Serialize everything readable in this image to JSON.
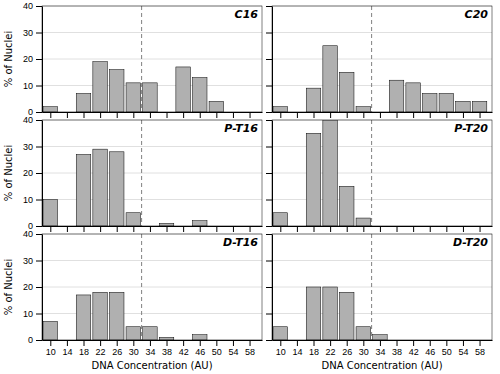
{
  "chart_data": [
    {
      "type": "bar",
      "title": "C16",
      "x": [
        10,
        14,
        18,
        22,
        26,
        30,
        34,
        38,
        42,
        46,
        50,
        54,
        58
      ],
      "values": [
        2,
        0,
        7,
        19,
        16,
        11,
        11,
        0,
        17,
        13,
        4,
        0,
        0
      ],
      "color": "#b0b0b0",
      "xlim": [
        8,
        61
      ],
      "ylim": [
        0,
        40
      ],
      "xticks": [
        10,
        14,
        18,
        22,
        26,
        30,
        34,
        38,
        42,
        46,
        50,
        54,
        58
      ],
      "yticks": [
        0,
        10,
        20,
        30,
        40
      ],
      "grid": true,
      "vline": 32,
      "tick_labels": "y",
      "ylabel": "% of Nuclei"
    },
    {
      "type": "bar",
      "title": "C20",
      "x": [
        10,
        14,
        18,
        22,
        26,
        30,
        34,
        38,
        42,
        46,
        50,
        54,
        58
      ],
      "values": [
        2,
        0,
        9,
        25,
        15,
        2,
        0,
        12,
        11,
        7,
        7,
        4,
        4
      ],
      "color": "#b0b0b0",
      "xlim": [
        8,
        61
      ],
      "ylim": [
        0,
        40
      ],
      "xticks": [
        10,
        14,
        18,
        22,
        26,
        30,
        34,
        38,
        42,
        46,
        50,
        54,
        58
      ],
      "yticks": [
        0,
        10,
        20,
        30,
        40
      ],
      "grid": true,
      "vline": 32,
      "tick_labels": false
    },
    {
      "type": "bar",
      "title": "P-T16",
      "x": [
        10,
        14,
        18,
        22,
        26,
        30,
        34,
        38,
        42,
        46,
        50,
        54,
        58
      ],
      "values": [
        10,
        0,
        27,
        29,
        28,
        5,
        0,
        1,
        0,
        2,
        0,
        0,
        0
      ],
      "color": "#b0b0b0",
      "xlim": [
        8,
        61
      ],
      "ylim": [
        0,
        40
      ],
      "xticks": [
        10,
        14,
        18,
        22,
        26,
        30,
        34,
        38,
        42,
        46,
        50,
        54,
        58
      ],
      "yticks": [
        0,
        10,
        20,
        30,
        40
      ],
      "grid": true,
      "vline": 32,
      "tick_labels": "y",
      "ylabel": "% of Nuclei"
    },
    {
      "type": "bar",
      "title": "P-T20",
      "x": [
        10,
        14,
        18,
        22,
        26,
        30,
        34,
        38,
        42,
        46,
        50,
        54,
        58
      ],
      "values": [
        5,
        0,
        35,
        40,
        15,
        3,
        0,
        0,
        0,
        0,
        0,
        0,
        0
      ],
      "color": "#b0b0b0",
      "xlim": [
        8,
        61
      ],
      "ylim": [
        0,
        40
      ],
      "xticks": [
        10,
        14,
        18,
        22,
        26,
        30,
        34,
        38,
        42,
        46,
        50,
        54,
        58
      ],
      "yticks": [
        0,
        10,
        20,
        30,
        40
      ],
      "grid": true,
      "vline": 32,
      "tick_labels": false
    },
    {
      "type": "bar",
      "title": "D-T16",
      "x": [
        10,
        14,
        18,
        22,
        26,
        30,
        34,
        38,
        42,
        46,
        50,
        54,
        58
      ],
      "values": [
        7,
        0,
        17,
        18,
        18,
        5,
        5,
        1,
        0,
        2,
        0,
        0,
        0
      ],
      "color": "#b0b0b0",
      "xlim": [
        8,
        61
      ],
      "ylim": [
        0,
        40
      ],
      "xticks": [
        10,
        14,
        18,
        22,
        26,
        30,
        34,
        38,
        42,
        46,
        50,
        54,
        58
      ],
      "yticks": [
        0,
        10,
        20,
        30,
        40
      ],
      "grid": true,
      "vline": 32,
      "xlabel": "DNA Concentration (AU)",
      "ylabel": "% of Nuclei"
    },
    {
      "type": "bar",
      "title": "D-T20",
      "x": [
        10,
        14,
        18,
        22,
        26,
        30,
        34,
        38,
        42,
        46,
        50,
        54,
        58
      ],
      "values": [
        5,
        0,
        20,
        20,
        18,
        5,
        2,
        0,
        0,
        0,
        0,
        0,
        0
      ],
      "color": "#b0b0b0",
      "xlim": [
        8,
        61
      ],
      "ylim": [
        0,
        40
      ],
      "xticks": [
        10,
        14,
        18,
        22,
        26,
        30,
        34,
        38,
        42,
        46,
        50,
        54,
        58
      ],
      "yticks": [
        0,
        10,
        20,
        30,
        40
      ],
      "grid": true,
      "vline": 32,
      "tick_labels": "x",
      "xlabel": "DNA Concentration (AU)"
    }
  ]
}
